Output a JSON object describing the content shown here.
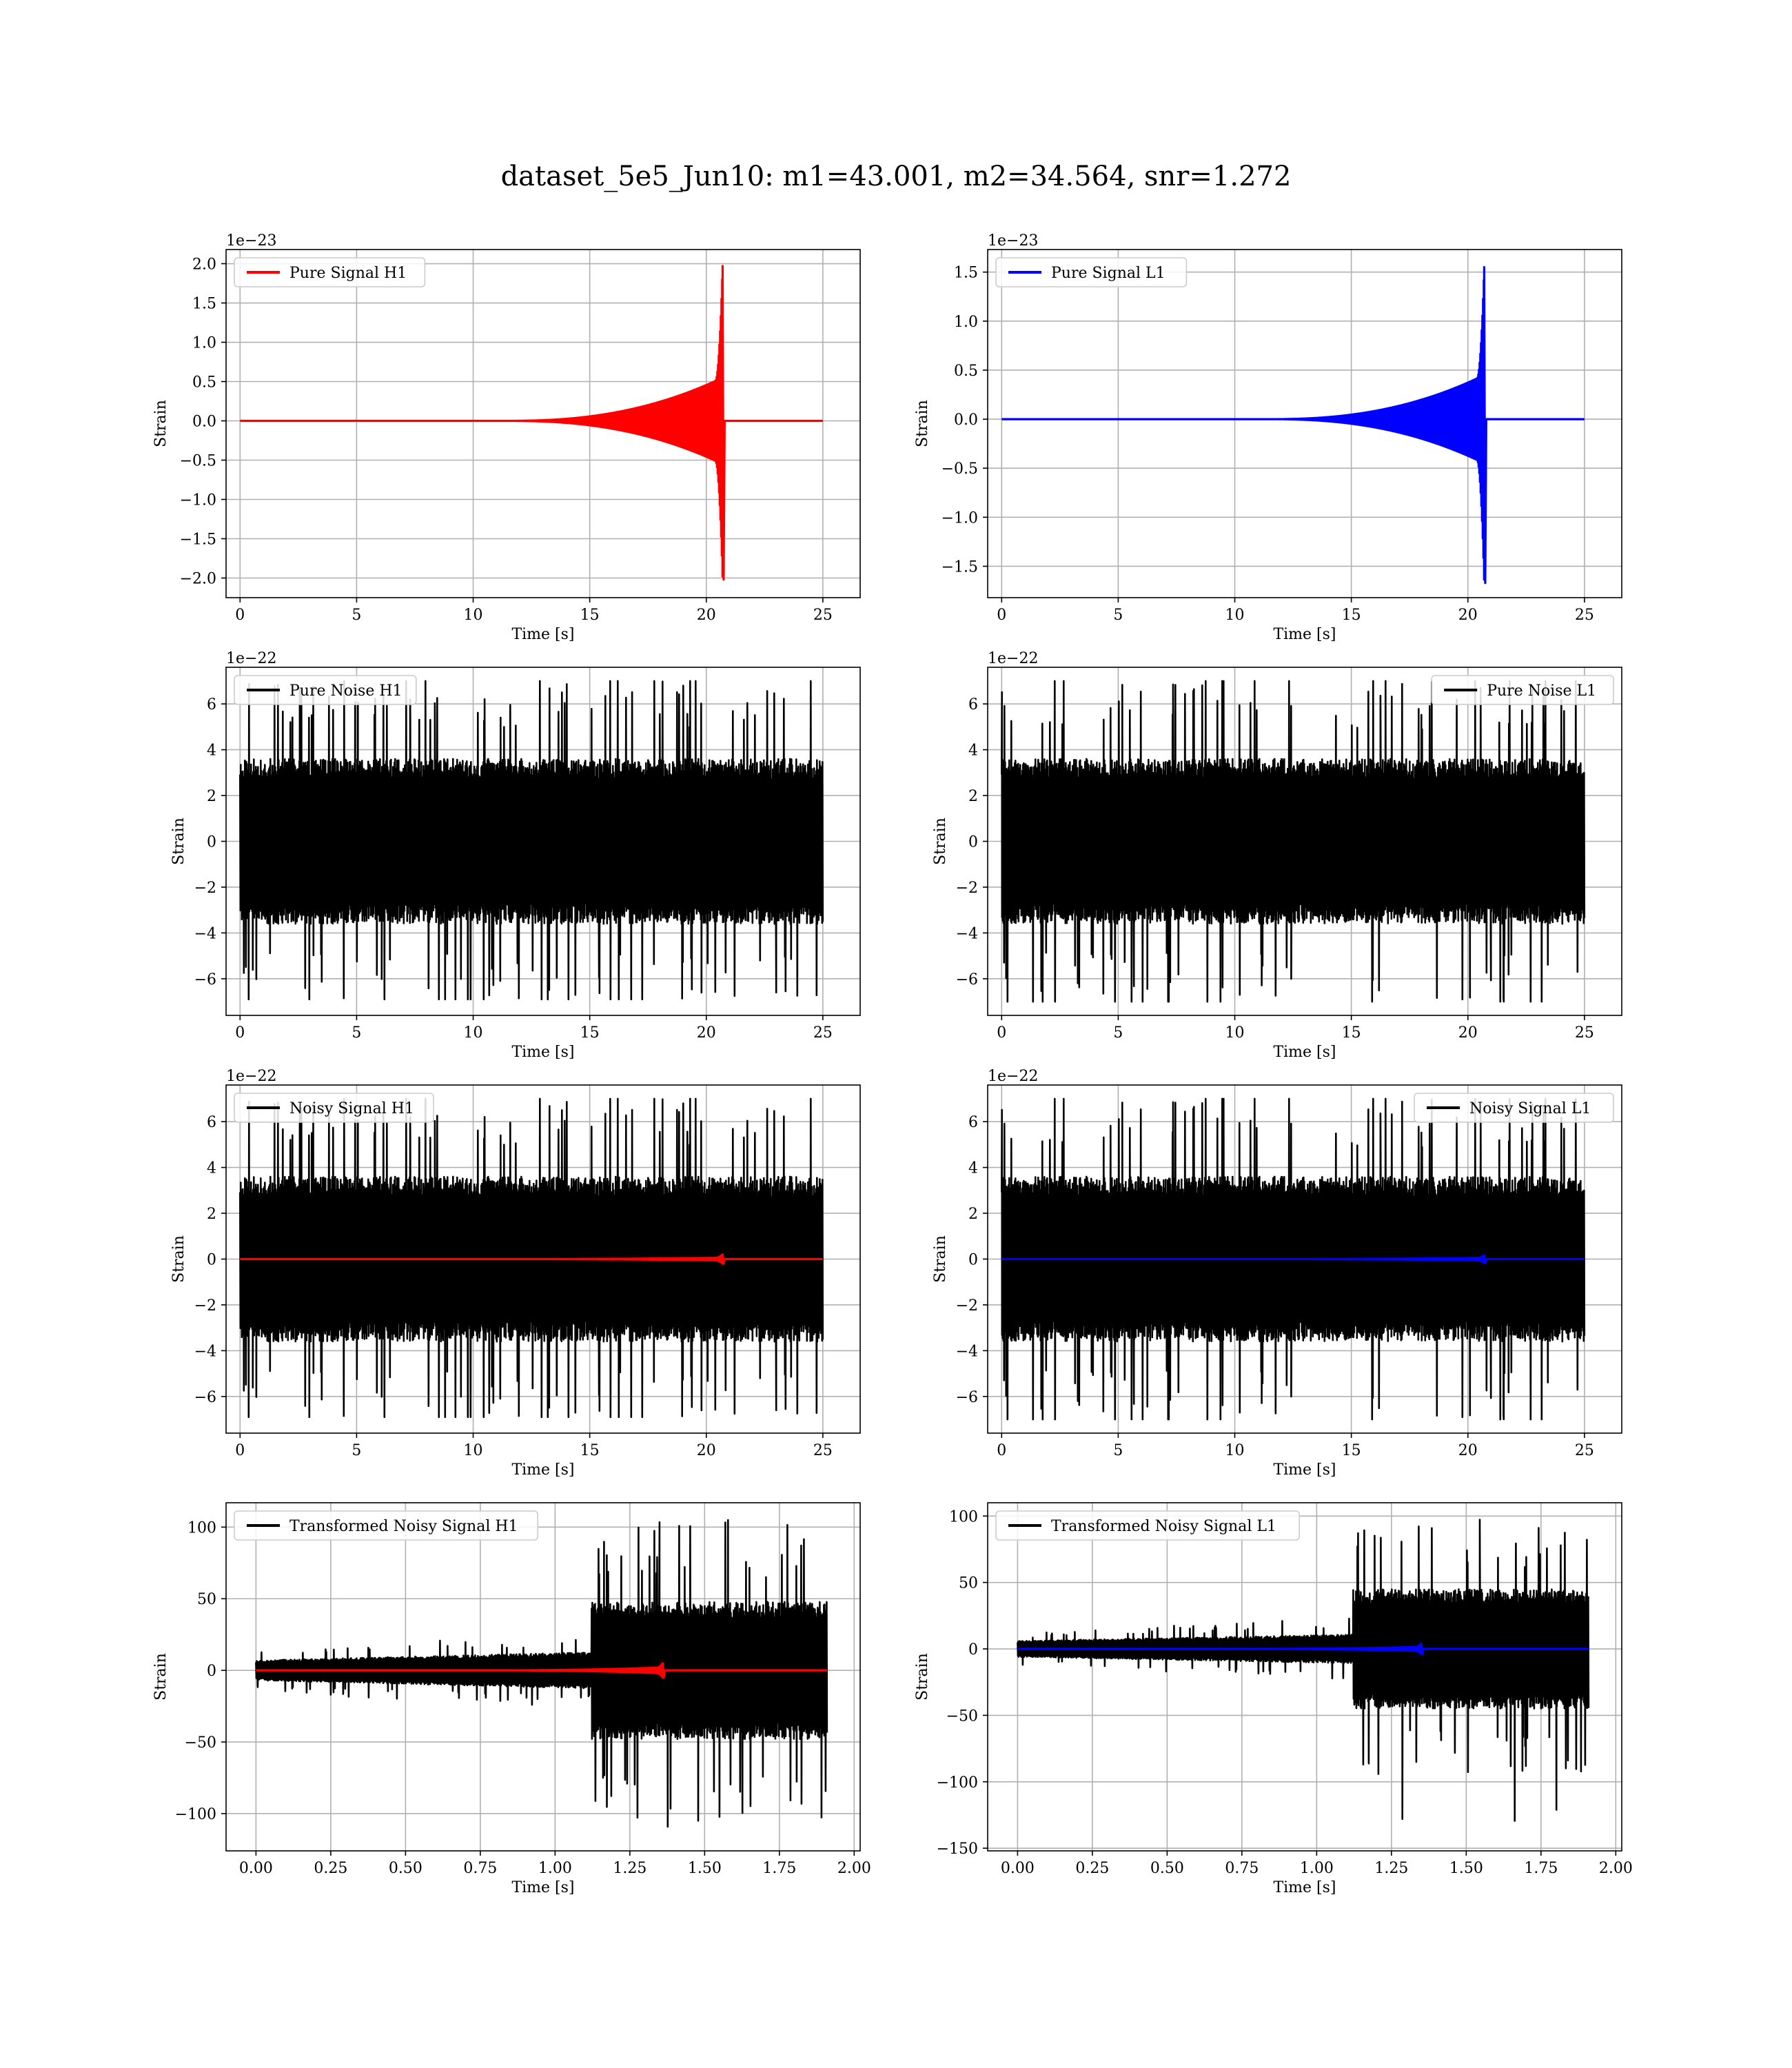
{
  "figure": {
    "title": "dataset_5e5_Jun10: m1=43.001, m2=34.564, snr=1.272"
  },
  "colors": {
    "h1_signal": "#ff0000",
    "l1_signal": "#0000ff",
    "noise": "#000000",
    "grid": "#b0b0b0"
  },
  "chart_data": [
    {
      "id": "pure-signal-h1",
      "type": "line",
      "detector": "H1",
      "xlabel": "Time [s]",
      "ylabel": "Strain",
      "offset_text": "1e−23",
      "xlim": [
        -0.6,
        26.6
      ],
      "ylim": [
        -2.25,
        2.18
      ],
      "xticks": [
        0,
        5,
        10,
        15,
        20,
        25
      ],
      "xtick_labels": [
        "0",
        "5",
        "10",
        "15",
        "20",
        "25"
      ],
      "yticks": [
        -2.0,
        -1.5,
        -1.0,
        -0.5,
        0.0,
        0.5,
        1.0,
        1.5,
        2.0
      ],
      "ytick_labels": [
        "−2.0",
        "−1.5",
        "−1.0",
        "−0.5",
        "0.0",
        "0.5",
        "1.0",
        "1.5",
        "2.0"
      ],
      "grid": true,
      "legend_loc": "upper-left",
      "series": [
        {
          "name": "Pure Signal H1",
          "color": "#ff0000",
          "kind": "chirp",
          "t_start": 0,
          "t_end": 25,
          "t_merger": 20.7,
          "peak": 1.97,
          "trough": -2.02,
          "plateau": 0.55
        }
      ]
    },
    {
      "id": "pure-signal-l1",
      "type": "line",
      "detector": "L1",
      "xlabel": "Time [s]",
      "ylabel": "Strain",
      "offset_text": "1e−23",
      "xlim": [
        -0.6,
        26.6
      ],
      "ylim": [
        -1.82,
        1.73
      ],
      "xticks": [
        0,
        5,
        10,
        15,
        20,
        25
      ],
      "xtick_labels": [
        "0",
        "5",
        "10",
        "15",
        "20",
        "25"
      ],
      "yticks": [
        -1.5,
        -1.0,
        -0.5,
        0.0,
        0.5,
        1.0,
        1.5
      ],
      "ytick_labels": [
        "−1.5",
        "−1.0",
        "−0.5",
        "0.0",
        "0.5",
        "1.0",
        "1.5"
      ],
      "grid": true,
      "legend_loc": "upper-left",
      "series": [
        {
          "name": "Pure Signal L1",
          "color": "#0000ff",
          "kind": "chirp",
          "t_start": 0,
          "t_end": 25,
          "t_merger": 20.7,
          "peak": 1.55,
          "trough": -1.67,
          "plateau": 0.45
        }
      ]
    },
    {
      "id": "pure-noise-h1",
      "type": "line",
      "detector": "H1",
      "xlabel": "Time [s]",
      "ylabel": "Strain",
      "offset_text": "1e−22",
      "xlim": [
        -0.6,
        26.6
      ],
      "ylim": [
        -7.6,
        7.6
      ],
      "xticks": [
        0,
        5,
        10,
        15,
        20,
        25
      ],
      "xtick_labels": [
        "0",
        "5",
        "10",
        "15",
        "20",
        "25"
      ],
      "yticks": [
        -6,
        -4,
        -2,
        0,
        2,
        4,
        6
      ],
      "ytick_labels": [
        "−6",
        "−4",
        "−2",
        "0",
        "2",
        "4",
        "6"
      ],
      "grid": true,
      "legend_loc": "upper-left",
      "series": [
        {
          "name": "Pure Noise H1",
          "color": "#000000",
          "kind": "noise",
          "t_start": 0,
          "t_end": 25,
          "band": 3.6,
          "spike_max": 7.0,
          "spike_min": -6.9,
          "seed": 11
        }
      ]
    },
    {
      "id": "pure-noise-l1",
      "type": "line",
      "detector": "L1",
      "xlabel": "Time [s]",
      "ylabel": "Strain",
      "offset_text": "1e−22",
      "xlim": [
        -0.6,
        26.6
      ],
      "ylim": [
        -7.6,
        7.6
      ],
      "xticks": [
        0,
        5,
        10,
        15,
        20,
        25
      ],
      "xtick_labels": [
        "0",
        "5",
        "10",
        "15",
        "20",
        "25"
      ],
      "yticks": [
        -6,
        -4,
        -2,
        0,
        2,
        4,
        6
      ],
      "ytick_labels": [
        "−6",
        "−4",
        "−2",
        "0",
        "2",
        "4",
        "6"
      ],
      "grid": true,
      "legend_loc": "upper-right",
      "series": [
        {
          "name": "Pure Noise L1",
          "color": "#000000",
          "kind": "noise",
          "t_start": 0,
          "t_end": 25,
          "band": 3.6,
          "spike_max": 7.0,
          "spike_min": -7.0,
          "seed": 29
        }
      ]
    },
    {
      "id": "noisy-signal-h1",
      "type": "line",
      "detector": "H1",
      "xlabel": "Time [s]",
      "ylabel": "Strain",
      "offset_text": "1e−22",
      "xlim": [
        -0.6,
        26.6
      ],
      "ylim": [
        -7.6,
        7.6
      ],
      "xticks": [
        0,
        5,
        10,
        15,
        20,
        25
      ],
      "xtick_labels": [
        "0",
        "5",
        "10",
        "15",
        "20",
        "25"
      ],
      "yticks": [
        -6,
        -4,
        -2,
        0,
        2,
        4,
        6
      ],
      "ytick_labels": [
        "−6",
        "−4",
        "−2",
        "0",
        "2",
        "4",
        "6"
      ],
      "grid": true,
      "legend_loc": "upper-left",
      "series": [
        {
          "name": "Noisy Signal H1",
          "color": "#000000",
          "kind": "noise",
          "t_start": 0,
          "t_end": 25,
          "band": 3.6,
          "spike_max": 7.0,
          "spike_min": -6.9,
          "seed": 11
        },
        {
          "color": "#ff0000",
          "kind": "chirp",
          "t_start": 0,
          "t_end": 25,
          "t_merger": 20.7,
          "peak": 0.2,
          "trough": -0.2,
          "plateau": 0.06
        }
      ]
    },
    {
      "id": "noisy-signal-l1",
      "type": "line",
      "detector": "L1",
      "xlabel": "Time [s]",
      "ylabel": "Strain",
      "offset_text": "1e−22",
      "xlim": [
        -0.6,
        26.6
      ],
      "ylim": [
        -7.6,
        7.6
      ],
      "xticks": [
        0,
        5,
        10,
        15,
        20,
        25
      ],
      "xtick_labels": [
        "0",
        "5",
        "10",
        "15",
        "20",
        "25"
      ],
      "yticks": [
        -6,
        -4,
        -2,
        0,
        2,
        4,
        6
      ],
      "ytick_labels": [
        "−6",
        "−4",
        "−2",
        "0",
        "2",
        "4",
        "6"
      ],
      "grid": true,
      "legend_loc": "upper-right",
      "series": [
        {
          "name": "Noisy Signal L1",
          "color": "#000000",
          "kind": "noise",
          "t_start": 0,
          "t_end": 25,
          "band": 3.6,
          "spike_max": 7.0,
          "spike_min": -7.0,
          "seed": 29
        },
        {
          "color": "#0000ff",
          "kind": "chirp",
          "t_start": 0,
          "t_end": 25,
          "t_merger": 20.7,
          "peak": 0.16,
          "trough": -0.17,
          "plateau": 0.05
        }
      ]
    },
    {
      "id": "transformed-noisy-signal-h1",
      "type": "line",
      "detector": "H1",
      "xlabel": "Time [s]",
      "ylabel": "Strain",
      "offset_text": "",
      "xlim": [
        -0.1,
        2.02
      ],
      "ylim": [
        -126,
        117
      ],
      "xticks": [
        0.0,
        0.25,
        0.5,
        0.75,
        1.0,
        1.25,
        1.5,
        1.75,
        2.0
      ],
      "xtick_labels": [
        "0.00",
        "0.25",
        "0.50",
        "0.75",
        "1.00",
        "1.25",
        "1.50",
        "1.75",
        "2.00"
      ],
      "yticks": [
        -100,
        -50,
        0,
        50,
        100
      ],
      "ytick_labels": [
        "−100",
        "−50",
        "0",
        "50",
        "100"
      ],
      "grid": true,
      "legend_loc": "upper-left",
      "series": [
        {
          "name": "Transformed Noisy Signal H1",
          "color": "#000000",
          "kind": "transformed",
          "t_start": 0,
          "t_end": 1.91,
          "t_jump": 1.12,
          "pre_band": 7,
          "post_band": 48,
          "spike_max": 105,
          "spike_min": -111,
          "seed": 53
        },
        {
          "color": "#ff0000",
          "kind": "chirp",
          "t_start": 0,
          "t_end": 1.91,
          "t_merger": 1.36,
          "peak": 5,
          "trough": -5,
          "plateau": 2
        }
      ]
    },
    {
      "id": "transformed-noisy-signal-l1",
      "type": "line",
      "detector": "L1",
      "xlabel": "Time [s]",
      "ylabel": "Strain",
      "offset_text": "",
      "xlim": [
        -0.1,
        2.02
      ],
      "ylim": [
        -152,
        110
      ],
      "xticks": [
        0.0,
        0.25,
        0.5,
        0.75,
        1.0,
        1.25,
        1.5,
        1.75,
        2.0
      ],
      "xtick_labels": [
        "0.00",
        "0.25",
        "0.50",
        "0.75",
        "1.00",
        "1.25",
        "1.50",
        "1.75",
        "2.00"
      ],
      "yticks": [
        -150,
        -100,
        -50,
        0,
        50,
        100
      ],
      "ytick_labels": [
        "−150",
        "−100",
        "−50",
        "0",
        "50",
        "100"
      ],
      "grid": true,
      "legend_loc": "upper-left",
      "series": [
        {
          "name": "Transformed Noisy Signal L1",
          "color": "#000000",
          "kind": "transformed",
          "t_start": 0,
          "t_end": 1.91,
          "t_jump": 1.12,
          "pre_band": 6,
          "post_band": 45,
          "spike_max": 100,
          "spike_min": -140,
          "seed": 71
        },
        {
          "color": "#0000ff",
          "kind": "chirp",
          "t_start": 0,
          "t_end": 1.91,
          "t_merger": 1.35,
          "peak": 4,
          "trough": -4,
          "plateau": 1.5
        }
      ]
    }
  ]
}
